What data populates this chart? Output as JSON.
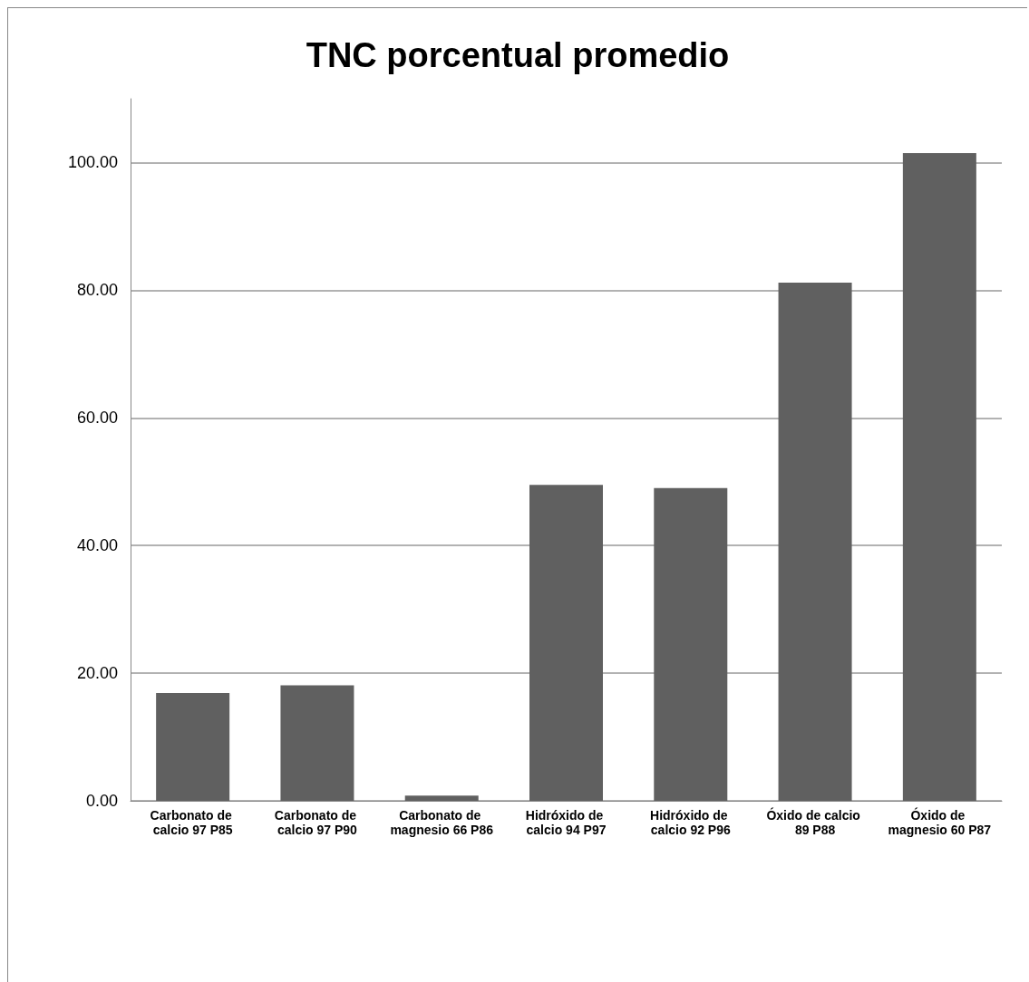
{
  "chart_data": {
    "type": "bar",
    "title": "TNC porcentual promedio",
    "categories": [
      "Carbonato de calcio 97 P85",
      "Carbonato de calcio 97 P90",
      "Carbonato de magnesio 66 P86",
      "Hidróxido de calcio 94 P97",
      "Hidróxido de calcio 92 P96",
      "Óxido de calcio 89 P88",
      "Óxido de magnesio 60 P87"
    ],
    "values": [
      16.9,
      18.1,
      0.8,
      49.5,
      49.0,
      81.2,
      101.5
    ],
    "color": "#606060",
    "ylim": [
      0,
      110
    ],
    "yticks": [
      {
        "value": 0,
        "label": "0.00"
      },
      {
        "value": 20,
        "label": "20.00"
      },
      {
        "value": 40,
        "label": "40.00"
      },
      {
        "value": 60,
        "label": "60.00"
      },
      {
        "value": 80,
        "label": "80.00"
      },
      {
        "value": 100,
        "label": "100.00"
      }
    ],
    "grid": "y"
  }
}
